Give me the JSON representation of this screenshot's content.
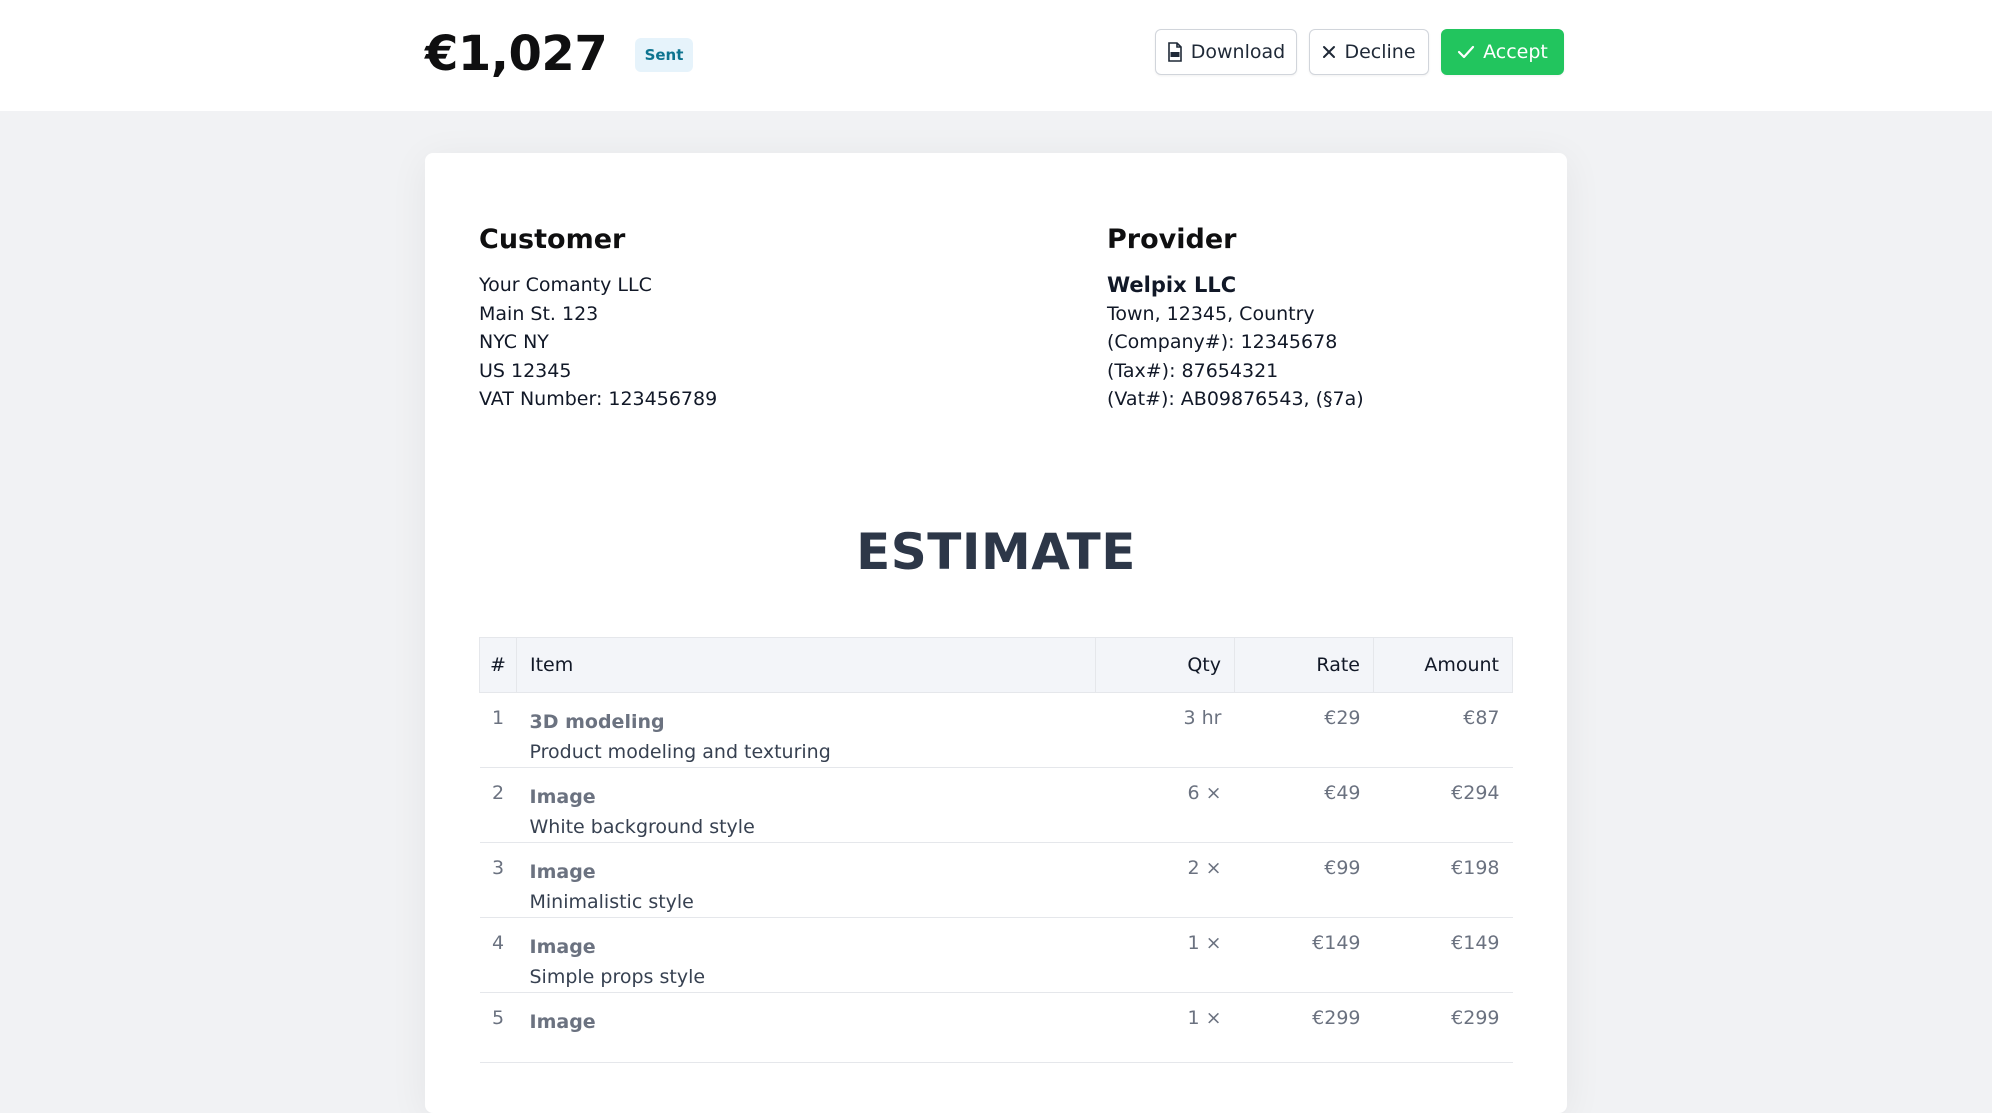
{
  "header": {
    "total": "€1,027",
    "status_badge": "Sent",
    "download_label": "Download",
    "decline_label": "Decline",
    "accept_label": "Accept"
  },
  "customer": {
    "heading": "Customer",
    "lines": [
      "Your Comanty LLC",
      "Main St. 123",
      "NYC NY",
      "US 12345",
      "VAT Number: 123456789"
    ]
  },
  "provider": {
    "heading": "Provider",
    "name": "Welpix LLC",
    "lines": [
      "Town, 12345, Country",
      "(Company#): 12345678",
      "(Tax#): 87654321",
      "(Vat#): AB09876543, (§7a)"
    ]
  },
  "document": {
    "title": "ESTIMATE"
  },
  "table": {
    "headers": {
      "num": "#",
      "item": "Item",
      "qty": "Qty",
      "rate": "Rate",
      "amount": "Amount"
    },
    "rows": [
      {
        "num": "1",
        "title": "3D modeling",
        "desc": "Product modeling and texturing",
        "qty": "3 hr",
        "rate": "€29",
        "amount": "€87"
      },
      {
        "num": "2",
        "title": "Image",
        "desc": "White background style",
        "qty": "6 ×",
        "rate": "€49",
        "amount": "€294"
      },
      {
        "num": "3",
        "title": "Image",
        "desc": "Minimalistic style",
        "qty": "2 ×",
        "rate": "€99",
        "amount": "€198"
      },
      {
        "num": "4",
        "title": "Image",
        "desc": "Simple props style",
        "qty": "1 ×",
        "rate": "€149",
        "amount": "€149"
      },
      {
        "num": "5",
        "title": "Image",
        "desc": "",
        "qty": "1 ×",
        "rate": "€299",
        "amount": "€299"
      }
    ]
  },
  "colors": {
    "accent": "#22c55e",
    "badge_bg": "#e6f3fb",
    "badge_text": "#0e7490"
  },
  "icons": {
    "download": "pdf-file-icon",
    "decline": "close-icon",
    "accept": "check-icon"
  }
}
